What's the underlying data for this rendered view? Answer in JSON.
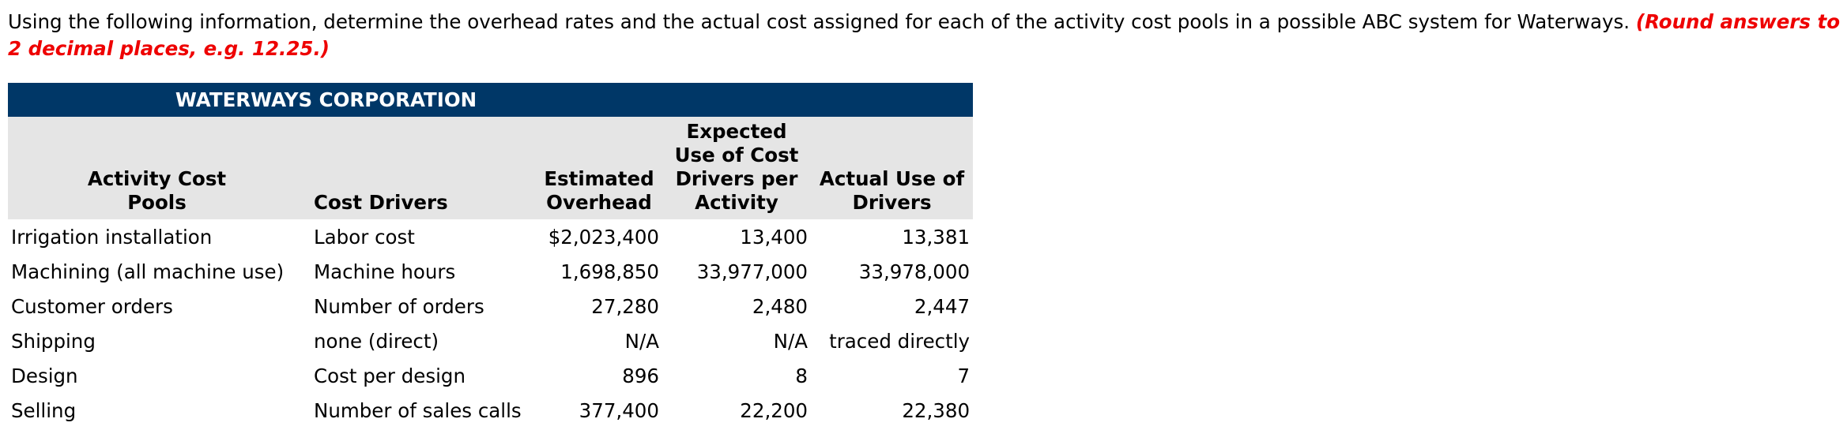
{
  "instructions": {
    "text": "Using the following information, determine the overhead rates and the actual cost assigned for each of the activity cost pools in a possible ABC system for Waterways.",
    "note": "(Round answers to 2 decimal places, e.g. 12.25.)"
  },
  "table": {
    "title": "WATERWAYS CORPORATION",
    "headers": {
      "pool_line1": "Activity Cost",
      "pool_line2": "Pools",
      "driver": "Cost Drivers",
      "overhead_line1": "Estimated",
      "overhead_line2": "Overhead",
      "expected_line1": "Expected",
      "expected_line2": "Use of Cost",
      "expected_line3": "Drivers per",
      "expected_line4": "Activity",
      "actual_line1": "Actual Use of",
      "actual_line2": "Drivers"
    },
    "rows": [
      {
        "pool": "Irrigation installation",
        "driver": "Labor cost",
        "overhead": "$2,023,400",
        "expected": "13,400",
        "actual": "13,381"
      },
      {
        "pool": "Machining (all machine use)",
        "driver": "Machine hours",
        "overhead": "1,698,850",
        "expected": "33,977,000",
        "actual": "33,978,000"
      },
      {
        "pool": "Customer orders",
        "driver": "Number of orders",
        "overhead": "27,280",
        "expected": "2,480",
        "actual": "2,447"
      },
      {
        "pool": "Shipping",
        "driver": "none (direct)",
        "overhead": "N/A",
        "expected": "N/A",
        "actual": "traced directly"
      },
      {
        "pool": "Design",
        "driver": "Cost per design",
        "overhead": "896",
        "expected": "8",
        "actual": "7"
      },
      {
        "pool": "Selling",
        "driver": "Number of sales calls",
        "overhead": "377,400",
        "expected": "22,200",
        "actual": "22,380"
      }
    ]
  },
  "colors": {
    "title_bar": "#003767",
    "header_bg": "#e5e5e5",
    "note_text": "#ee0000"
  }
}
